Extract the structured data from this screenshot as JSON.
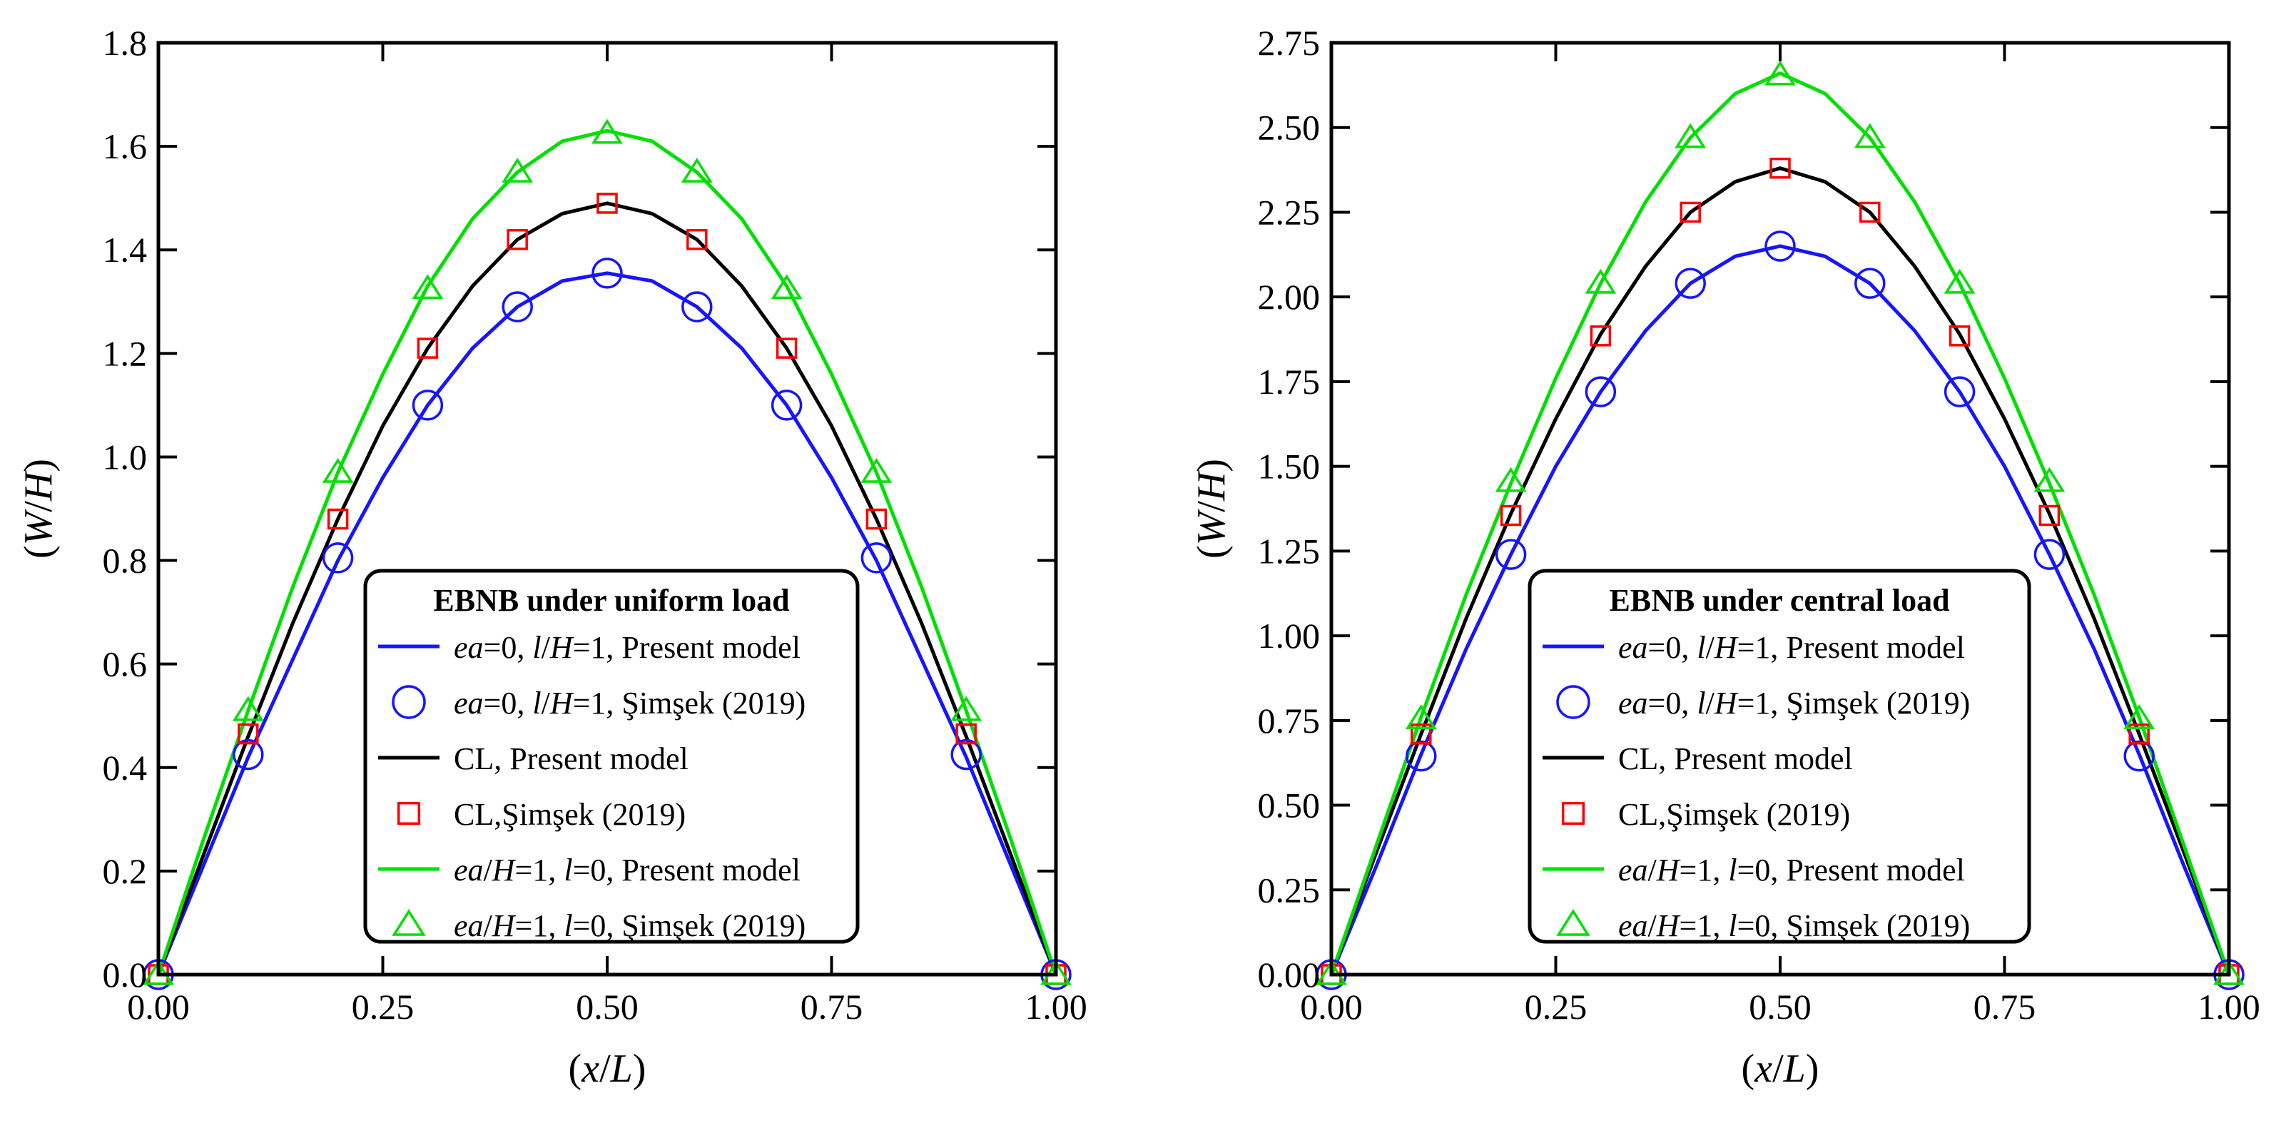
{
  "chart_data": [
    {
      "type": "line",
      "xlabel": "(x/L)",
      "ylabel": "(W/H)",
      "xlim": [
        0,
        1
      ],
      "ylim": [
        0,
        1.8
      ],
      "xticks": [
        "0.00",
        "0.25",
        "0.50",
        "0.75",
        "1.00"
      ],
      "yticks": [
        "0.0",
        "0.2",
        "0.4",
        "0.6",
        "0.8",
        "1.0",
        "1.2",
        "1.4",
        "1.6",
        "1.8"
      ],
      "grid": false,
      "legend": {
        "title": "EBNB under uniform load",
        "placement": "lower-center",
        "entries": [
          {
            "label": "ea=0, l/H=1, Present model",
            "style": "line",
            "color": "#1515ff"
          },
          {
            "label": "ea=0, l/H=1, Şimşek (2019)",
            "style": "circle",
            "color": "#1515ff"
          },
          {
            "label": "CL, Present model",
            "style": "line",
            "color": "#000000"
          },
          {
            "label": "CL,Şimşek (2019)",
            "style": "square",
            "color": "#ff0000"
          },
          {
            "label": "ea/H=1, l=0, Present model",
            "style": "line",
            "color": "#00e000"
          },
          {
            "label": "ea/H=1, l=0, Şimşek (2019)",
            "style": "triangle",
            "color": "#00e000"
          }
        ]
      },
      "series": [
        {
          "name": "ea=0, l/H=1, Present model",
          "kind": "line",
          "color": "#1515ff",
          "x": [
            0,
            0.05,
            0.1,
            0.15,
            0.2,
            0.25,
            0.3,
            0.35,
            0.4,
            0.45,
            0.5,
            0.55,
            0.6,
            0.65,
            0.7,
            0.75,
            0.8,
            0.85,
            0.9,
            0.95,
            1.0
          ],
          "y": [
            0,
            0.21,
            0.42,
            0.61,
            0.8,
            0.96,
            1.1,
            1.21,
            1.29,
            1.34,
            1.355,
            1.34,
            1.29,
            1.21,
            1.1,
            0.96,
            0.8,
            0.61,
            0.42,
            0.21,
            0
          ]
        },
        {
          "name": "ea=0, l/H=1, Şimşek (2019)",
          "kind": "circle",
          "color": "#1515ff",
          "x": [
            0,
            0.1,
            0.2,
            0.3,
            0.4,
            0.5,
            0.6,
            0.7,
            0.8,
            0.9,
            1.0
          ],
          "y": [
            0,
            0.425,
            0.805,
            1.1,
            1.29,
            1.355,
            1.29,
            1.1,
            0.805,
            0.425,
            0
          ]
        },
        {
          "name": "CL, Present model",
          "kind": "line",
          "color": "#000000",
          "x": [
            0,
            0.05,
            0.1,
            0.15,
            0.2,
            0.25,
            0.3,
            0.35,
            0.4,
            0.45,
            0.5,
            0.55,
            0.6,
            0.65,
            0.7,
            0.75,
            0.8,
            0.85,
            0.9,
            0.95,
            1.0
          ],
          "y": [
            0,
            0.23,
            0.46,
            0.68,
            0.88,
            1.06,
            1.21,
            1.33,
            1.42,
            1.47,
            1.49,
            1.47,
            1.42,
            1.33,
            1.21,
            1.06,
            0.88,
            0.68,
            0.46,
            0.23,
            0
          ]
        },
        {
          "name": "CL,Şimşek (2019)",
          "kind": "square",
          "color": "#ff0000",
          "x": [
            0,
            0.1,
            0.2,
            0.3,
            0.4,
            0.5,
            0.6,
            0.7,
            0.8,
            0.9,
            1.0
          ],
          "y": [
            0,
            0.465,
            0.88,
            1.21,
            1.42,
            1.49,
            1.42,
            1.21,
            0.88,
            0.465,
            0
          ]
        },
        {
          "name": "ea/H=1, l=0, Present model",
          "kind": "line",
          "color": "#00e000",
          "x": [
            0,
            0.05,
            0.1,
            0.15,
            0.2,
            0.25,
            0.3,
            0.35,
            0.4,
            0.45,
            0.5,
            0.55,
            0.6,
            0.65,
            0.7,
            0.75,
            0.8,
            0.85,
            0.9,
            0.95,
            1.0
          ],
          "y": [
            0,
            0.26,
            0.51,
            0.75,
            0.97,
            1.16,
            1.33,
            1.46,
            1.55,
            1.61,
            1.63,
            1.61,
            1.55,
            1.46,
            1.33,
            1.16,
            0.97,
            0.75,
            0.51,
            0.26,
            0
          ]
        },
        {
          "name": "ea/H=1, l=0, Şimşek (2019)",
          "kind": "triangle",
          "color": "#00e000",
          "x": [
            0,
            0.1,
            0.2,
            0.3,
            0.4,
            0.5,
            0.6,
            0.7,
            0.8,
            0.9,
            1.0
          ],
          "y": [
            0,
            0.51,
            0.97,
            1.325,
            1.55,
            1.625,
            1.55,
            1.325,
            0.97,
            0.51,
            0
          ]
        }
      ]
    },
    {
      "type": "line",
      "xlabel": "(x/L)",
      "ylabel": "(W/H)",
      "xlim": [
        0,
        1
      ],
      "ylim": [
        0,
        2.75
      ],
      "xticks": [
        "0.00",
        "0.25",
        "0.50",
        "0.75",
        "1.00"
      ],
      "yticks": [
        "0.00",
        "0.25",
        "0.50",
        "0.75",
        "1.00",
        "1.25",
        "1.50",
        "1.75",
        "2.00",
        "2.25",
        "2.50",
        "2.75"
      ],
      "grid": false,
      "legend": {
        "title": "EBNB under central load",
        "placement": "lower-center",
        "entries": [
          {
            "label": "ea=0, l/H=1, Present model",
            "style": "line",
            "color": "#1515ff"
          },
          {
            "label": "ea=0, l/H=1, Şimşek (2019)",
            "style": "circle",
            "color": "#1515ff"
          },
          {
            "label": "CL, Present model",
            "style": "line",
            "color": "#000000"
          },
          {
            "label": "CL,Şimşek (2019)",
            "style": "square",
            "color": "#ff0000"
          },
          {
            "label": "ea/H=1, l=0, Present model",
            "style": "line",
            "color": "#00e000"
          },
          {
            "label": "ea/H=1, l=0, Şimşek (2019)",
            "style": "triangle",
            "color": "#00e000"
          }
        ]
      },
      "series": [
        {
          "name": "ea=0, l/H=1, Present model",
          "kind": "line",
          "color": "#1515ff",
          "x": [
            0,
            0.05,
            0.1,
            0.15,
            0.2,
            0.25,
            0.3,
            0.35,
            0.4,
            0.45,
            0.5,
            0.55,
            0.6,
            0.65,
            0.7,
            0.75,
            0.8,
            0.85,
            0.9,
            0.95,
            1.0
          ],
          "y": [
            0,
            0.32,
            0.65,
            0.96,
            1.24,
            1.5,
            1.72,
            1.9,
            2.04,
            2.12,
            2.15,
            2.12,
            2.04,
            1.9,
            1.72,
            1.5,
            1.24,
            0.96,
            0.65,
            0.32,
            0
          ]
        },
        {
          "name": "ea=0, l/H=1, Şimşek (2019)",
          "kind": "circle",
          "color": "#1515ff",
          "x": [
            0,
            0.1,
            0.2,
            0.3,
            0.4,
            0.5,
            0.6,
            0.7,
            0.8,
            0.9,
            1.0
          ],
          "y": [
            0,
            0.645,
            1.24,
            1.72,
            2.04,
            2.15,
            2.04,
            1.72,
            1.24,
            0.645,
            0
          ]
        },
        {
          "name": "CL, Present model",
          "kind": "line",
          "color": "#000000",
          "x": [
            0,
            0.05,
            0.1,
            0.15,
            0.2,
            0.25,
            0.3,
            0.35,
            0.4,
            0.45,
            0.5,
            0.55,
            0.6,
            0.65,
            0.7,
            0.75,
            0.8,
            0.85,
            0.9,
            0.95,
            1.0
          ],
          "y": [
            0,
            0.36,
            0.71,
            1.05,
            1.36,
            1.64,
            1.89,
            2.09,
            2.25,
            2.34,
            2.38,
            2.34,
            2.25,
            2.09,
            1.89,
            1.64,
            1.36,
            1.05,
            0.71,
            0.36,
            0
          ]
        },
        {
          "name": "CL,Şimşek (2019)",
          "kind": "square",
          "color": "#ff0000",
          "x": [
            0,
            0.1,
            0.2,
            0.3,
            0.4,
            0.5,
            0.6,
            0.7,
            0.8,
            0.9,
            1.0
          ],
          "y": [
            0,
            0.71,
            1.355,
            1.885,
            2.25,
            2.38,
            2.25,
            1.885,
            1.355,
            0.71,
            0
          ]
        },
        {
          "name": "ea/H=1, l=0, Present model",
          "kind": "line",
          "color": "#00e000",
          "x": [
            0,
            0.05,
            0.1,
            0.15,
            0.2,
            0.25,
            0.3,
            0.35,
            0.4,
            0.45,
            0.5,
            0.55,
            0.6,
            0.65,
            0.7,
            0.75,
            0.8,
            0.85,
            0.9,
            0.95,
            1.0
          ],
          "y": [
            0,
            0.38,
            0.76,
            1.12,
            1.45,
            1.76,
            2.04,
            2.28,
            2.47,
            2.6,
            2.66,
            2.6,
            2.47,
            2.28,
            2.04,
            1.76,
            1.45,
            1.12,
            0.76,
            0.38,
            0
          ]
        },
        {
          "name": "ea/H=1, l=0, Şimşek (2019)",
          "kind": "triangle",
          "color": "#00e000",
          "x": [
            0,
            0.1,
            0.2,
            0.3,
            0.4,
            0.5,
            0.6,
            0.7,
            0.8,
            0.9,
            1.0
          ],
          "y": [
            0,
            0.755,
            1.455,
            2.04,
            2.47,
            2.655,
            2.47,
            2.04,
            1.455,
            0.755,
            0
          ]
        }
      ]
    }
  ]
}
